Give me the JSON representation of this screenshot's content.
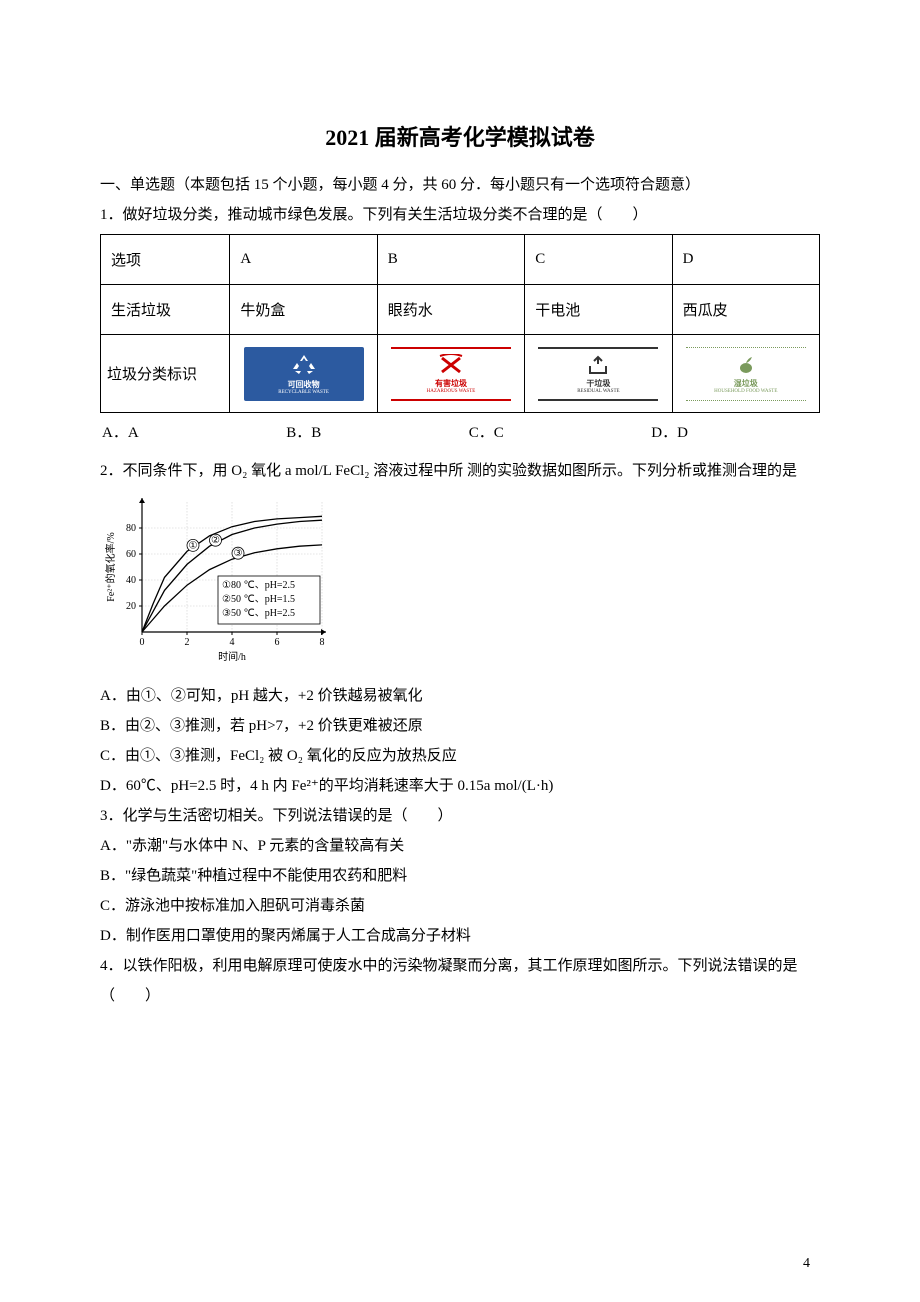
{
  "page_number": "4",
  "title": "2021 届新高考化学模拟试卷",
  "section_heading": "一、单选题（本题包括 15 个小题，每小题 4 分，共 60 分．每小题只有一个选项符合题意）",
  "q1": {
    "stem": "1．做好垃圾分类，推动城市绿色发展。下列有关生活垃圾分类不合理的是（　　）",
    "row1_label": "选项",
    "row1_cells": [
      "A",
      "B",
      "C",
      "D"
    ],
    "row2_label": "生活垃圾",
    "row2_cells": [
      "牛奶盒",
      "眼药水",
      "干电池",
      "西瓜皮"
    ],
    "row3_label": "垃圾分类标识",
    "icons": [
      {
        "cn": "可回收物",
        "en": "RECYCLABLE WASTE",
        "color": "#2c5aa0",
        "bg": "#2c5aa0"
      },
      {
        "cn": "有害垃圾",
        "en": "HAZARDOUS WASTE",
        "color": "#cc0000",
        "bg": "#ffffff"
      },
      {
        "cn": "干垃圾",
        "en": "RESIDUAL WASTE",
        "color": "#333333",
        "bg": "#ffffff"
      },
      {
        "cn": "湿垃圾",
        "en": "HOUSEHOLD FOOD WASTE",
        "color": "#7a9a5c",
        "bg": "#ffffff"
      }
    ],
    "options": [
      "A．A",
      "B．B",
      "C．C",
      "D．D"
    ]
  },
  "q2": {
    "stem": "2．不同条件下，用 O₂ 氧化 a mol/L FeCl₂ 溶液过程中所 测的实验数据如图所示。下列分析或推测合理的是",
    "chart": {
      "type": "line",
      "xlabel": "时间/h",
      "ylabel": "Fe²⁺的氧化率/%",
      "xlim": [
        0,
        8
      ],
      "xtick": [
        0,
        2,
        4,
        6,
        8
      ],
      "ylim": [
        0,
        100
      ],
      "ytick": [
        20,
        40,
        60,
        80
      ],
      "legend": [
        "①80 ℃、pH=2.5",
        "②50 ℃、pH=1.5",
        "③50 ℃、pH=2.5"
      ],
      "series": [
        {
          "label": "①",
          "pts": [
            [
              0,
              0
            ],
            [
              0.5,
              22
            ],
            [
              1,
              42
            ],
            [
              2,
              62
            ],
            [
              3,
              74
            ],
            [
              4,
              81
            ],
            [
              5,
              85
            ],
            [
              6,
              87
            ],
            [
              7,
              88
            ],
            [
              8,
              89
            ]
          ]
        },
        {
          "label": "②",
          "pts": [
            [
              0,
              0
            ],
            [
              0.5,
              16
            ],
            [
              1,
              32
            ],
            [
              2,
              52
            ],
            [
              3,
              66
            ],
            [
              4,
              75
            ],
            [
              5,
              80
            ],
            [
              6,
              83
            ],
            [
              7,
              85
            ],
            [
              8,
              86
            ]
          ]
        },
        {
          "label": "③",
          "pts": [
            [
              0,
              0
            ],
            [
              0.5,
              10
            ],
            [
              1,
              20
            ],
            [
              2,
              36
            ],
            [
              3,
              48
            ],
            [
              4,
              56
            ],
            [
              5,
              61
            ],
            [
              6,
              64
            ],
            [
              7,
              66
            ],
            [
              8,
              67
            ]
          ]
        }
      ],
      "line_color": "#000000",
      "grid_color": "#cccccc",
      "font_size": 10
    },
    "options": [
      "A．由①、②可知，pH 越大，+2 价铁越易被氧化",
      "B．由②、③推测，若 pH>7，+2 价铁更难被还原",
      "C．由①、③推测，FeCl₂ 被 O₂ 氧化的反应为放热反应",
      "D．60℃、pH=2.5 时，4 h 内 Fe²⁺的平均消耗速率大于 0.15a mol/(L·h)"
    ]
  },
  "q3": {
    "stem": "3．化学与生活密切相关。下列说法错误的是（　　）",
    "options": [
      "A．\"赤潮\"与水体中 N、P 元素的含量较高有关",
      "B．\"绿色蔬菜\"种植过程中不能使用农药和肥料",
      "C．游泳池中按标准加入胆矾可消毒杀菌",
      "D．制作医用口罩使用的聚丙烯属于人工合成高分子材料"
    ]
  },
  "q4": {
    "stem": "4．以铁作阳极，利用电解原理可使废水中的污染物凝聚而分离，其工作原理如图所示。下列说法错误的是（　　）"
  }
}
